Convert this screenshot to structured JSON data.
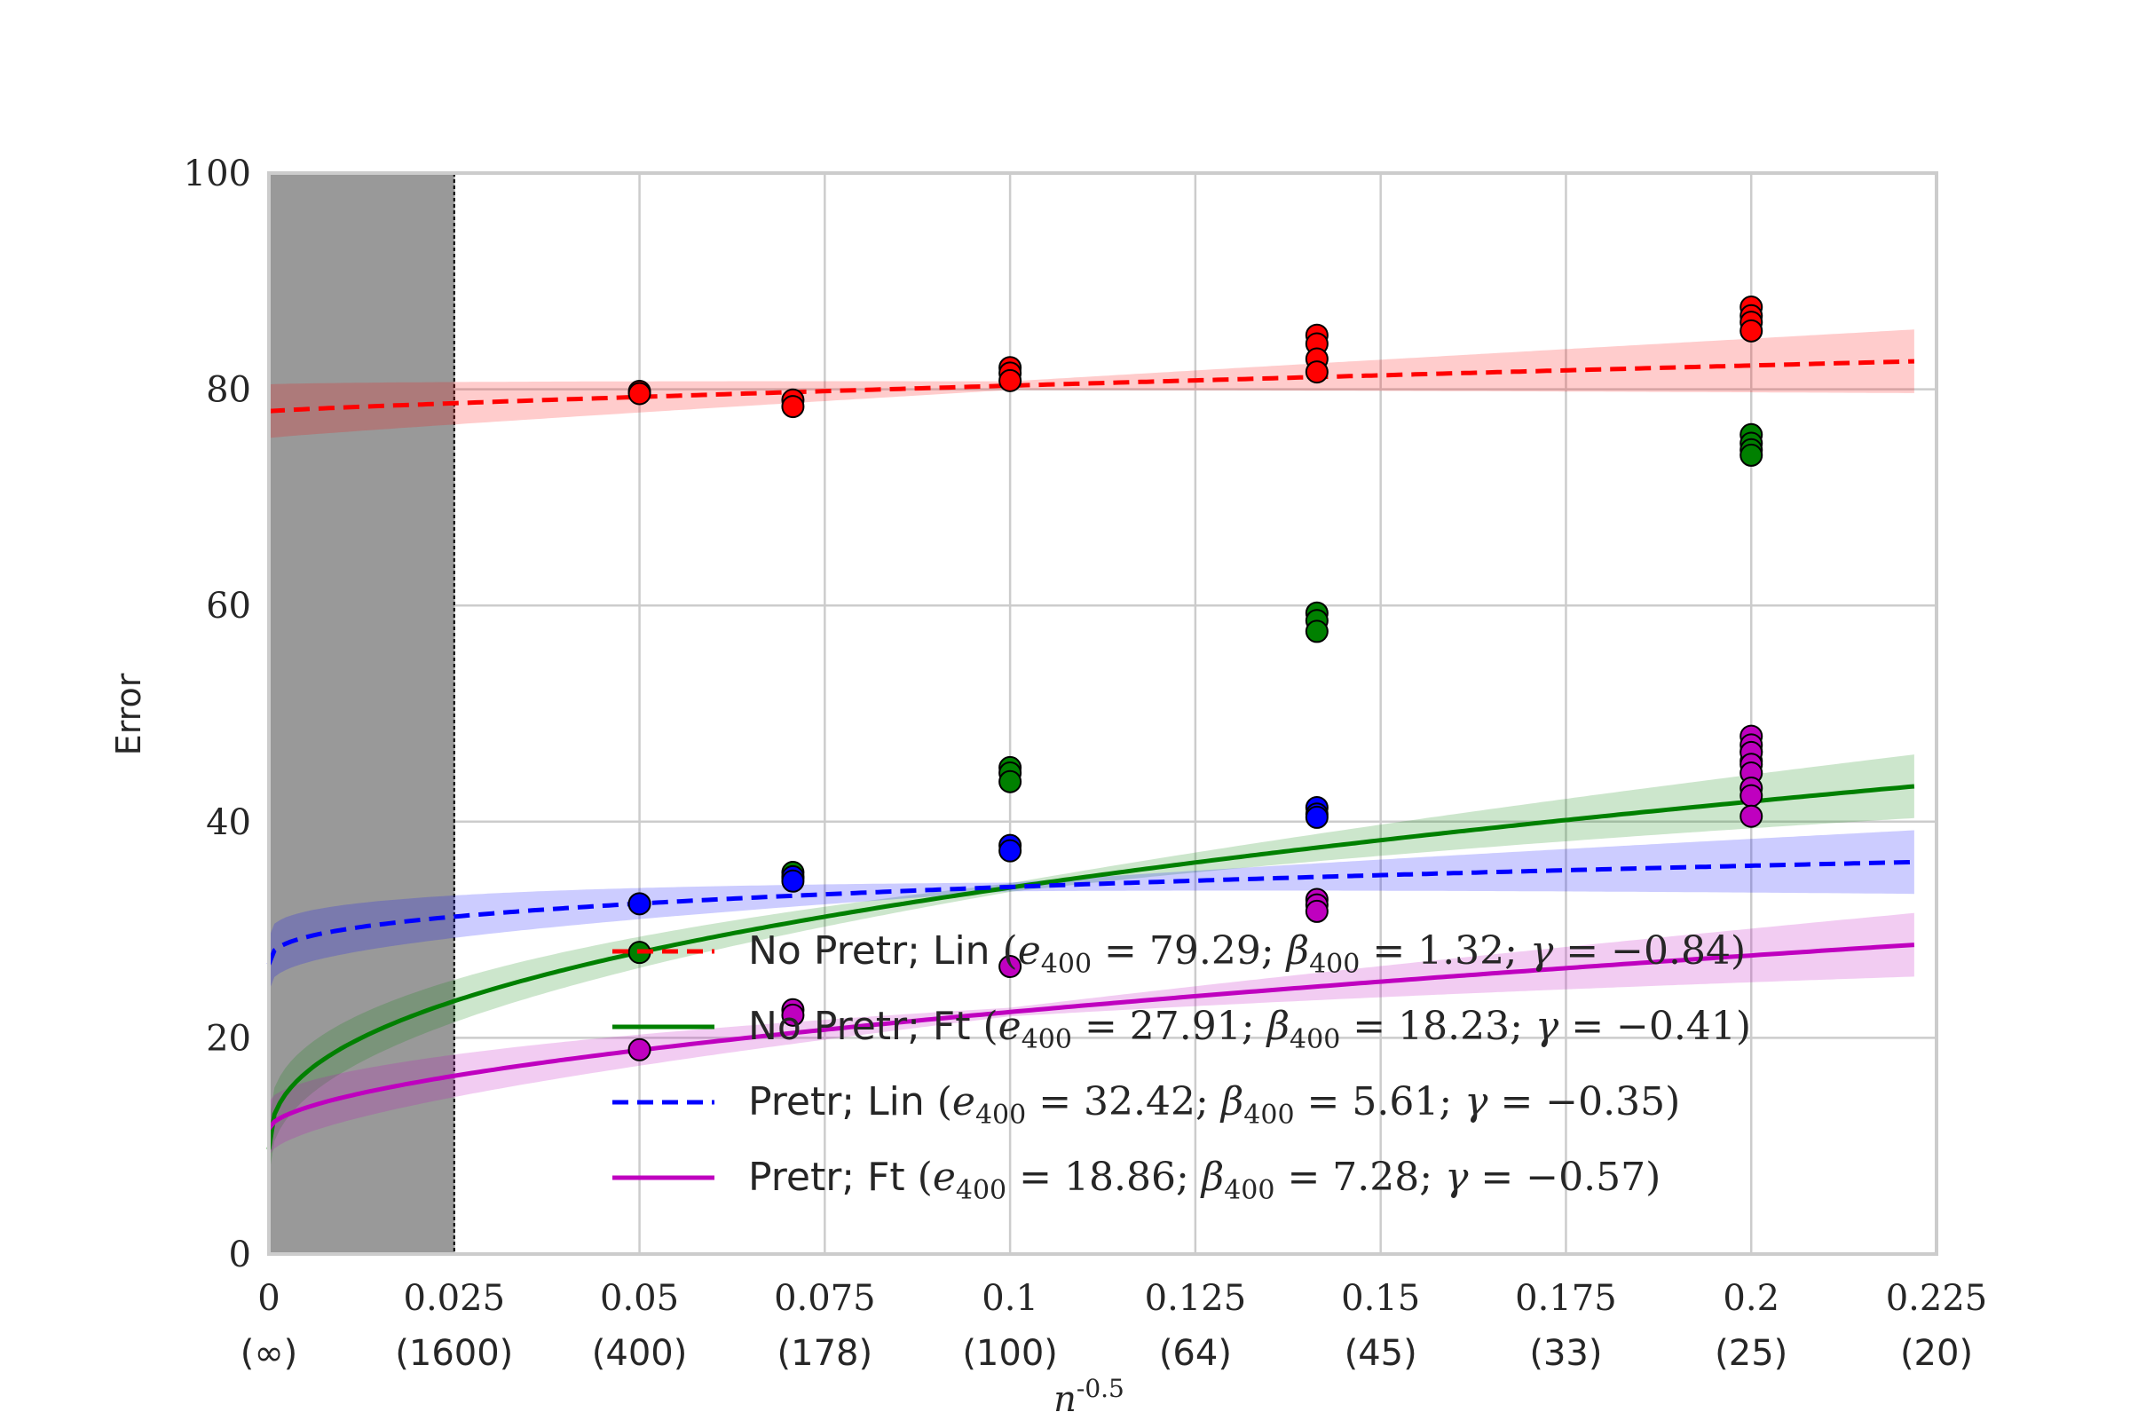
{
  "chart_data": {
    "type": "line",
    "xlabel": "n^{-0.5}",
    "ylabel": "Error",
    "xlim": [
      0,
      0.225
    ],
    "ylim": [
      0,
      100
    ],
    "grid": true,
    "x_ticks": [
      {
        "value": 0,
        "label": "0",
        "sublabel": "(∞)"
      },
      {
        "value": 0.025,
        "label": "0.025",
        "sublabel": "(1600)"
      },
      {
        "value": 0.05,
        "label": "0.05",
        "sublabel": "(400)"
      },
      {
        "value": 0.075,
        "label": "0.075",
        "sublabel": "(178)"
      },
      {
        "value": 0.1,
        "label": "0.1",
        "sublabel": "(100)"
      },
      {
        "value": 0.125,
        "label": "0.125",
        "sublabel": "(64)"
      },
      {
        "value": 0.15,
        "label": "0.15",
        "sublabel": "(45)"
      },
      {
        "value": 0.175,
        "label": "0.175",
        "sublabel": "(33)"
      },
      {
        "value": 0.2,
        "label": "0.2",
        "sublabel": "(25)"
      },
      {
        "value": 0.225,
        "label": "0.225",
        "sublabel": "(20)"
      }
    ],
    "y_ticks": [
      0,
      20,
      40,
      60,
      80,
      100
    ],
    "shaded_region": {
      "x_from": 0,
      "x_to": 0.025,
      "color": "#999999"
    },
    "legend_position": "lower-right",
    "series": [
      {
        "name": "No Pretr; Lin (e_400 = 79.29; β_400 = 1.32; γ = −0.84)",
        "legend": {
          "text": "No Pretr; Lin",
          "e": "79.29",
          "beta": "1.32",
          "gamma": "−0.84"
        },
        "color": "#ff0000",
        "dashed": true,
        "curve": {
          "e400": 79.29,
          "beta400": 1.32,
          "gamma": -0.84
        },
        "points": [
          [
            0.05,
            79.8
          ],
          [
            0.05,
            79.6
          ],
          [
            0.0707,
            79.0
          ],
          [
            0.0707,
            78.4
          ],
          [
            0.1,
            82.0
          ],
          [
            0.1,
            81.5
          ],
          [
            0.1,
            80.8
          ],
          [
            0.1414,
            85.0
          ],
          [
            0.1414,
            84.2
          ],
          [
            0.1414,
            82.8
          ],
          [
            0.1414,
            81.6
          ],
          [
            0.2,
            87.6
          ],
          [
            0.2,
            86.8
          ],
          [
            0.2,
            86.2
          ],
          [
            0.2,
            85.4
          ]
        ]
      },
      {
        "name": "No Pretr; Ft (e_400 = 27.91; β_400 = 18.23; γ = −0.41)",
        "legend": {
          "text": "No Pretr; Ft",
          "e": "27.91",
          "beta": "18.23",
          "gamma": "−0.41"
        },
        "color": "#008000",
        "dashed": false,
        "curve": {
          "e400": 27.91,
          "beta400": 18.23,
          "gamma": -0.41
        },
        "points": [
          [
            0.05,
            27.9
          ],
          [
            0.0707,
            35.3
          ],
          [
            0.0707,
            34.8
          ],
          [
            0.1,
            45.0
          ],
          [
            0.1,
            44.5
          ],
          [
            0.1,
            43.7
          ],
          [
            0.1414,
            59.3
          ],
          [
            0.1414,
            58.6
          ],
          [
            0.1414,
            57.6
          ],
          [
            0.2,
            75.8
          ],
          [
            0.2,
            75.0
          ],
          [
            0.2,
            74.4
          ],
          [
            0.2,
            73.9
          ]
        ]
      },
      {
        "name": "Pretr; Lin (e_400 = 32.42; β_400 = 5.61; γ = −0.35)",
        "legend": {
          "text": "Pretr; Lin",
          "e": "32.42",
          "beta": "5.61",
          "gamma": "−0.35"
        },
        "color": "#0000ff",
        "dashed": true,
        "curve": {
          "e400": 32.42,
          "beta400": 5.61,
          "gamma": -0.35
        },
        "points": [
          [
            0.05,
            32.4
          ],
          [
            0.0707,
            34.9
          ],
          [
            0.0707,
            34.5
          ],
          [
            0.1,
            37.8
          ],
          [
            0.1,
            37.3
          ],
          [
            0.1414,
            41.3
          ],
          [
            0.1414,
            40.7
          ],
          [
            0.1414,
            40.4
          ],
          [
            0.2,
            46.5
          ],
          [
            0.2,
            45.6
          ]
        ]
      },
      {
        "name": "Pretr; Ft (e_400 = 18.86; β_400 = 7.28; γ = −0.57)",
        "legend": {
          "text": "Pretr; Ft",
          "e": "18.86",
          "beta": "7.28",
          "gamma": "−0.57"
        },
        "color": "#bf00bf",
        "dashed": false,
        "curve": {
          "e400": 18.86,
          "beta400": 7.28,
          "gamma": -0.57
        },
        "points": [
          [
            0.05,
            18.9
          ],
          [
            0.0707,
            22.6
          ],
          [
            0.0707,
            22.1
          ],
          [
            0.1,
            26.6
          ],
          [
            0.1414,
            32.8
          ],
          [
            0.1414,
            32.3
          ],
          [
            0.1414,
            31.7
          ],
          [
            0.2,
            47.9
          ],
          [
            0.2,
            47.1
          ],
          [
            0.2,
            46.4
          ],
          [
            0.2,
            45.3
          ],
          [
            0.2,
            44.5
          ],
          [
            0.2,
            43.1
          ],
          [
            0.2,
            42.4
          ],
          [
            0.2,
            40.5
          ]
        ]
      }
    ]
  }
}
